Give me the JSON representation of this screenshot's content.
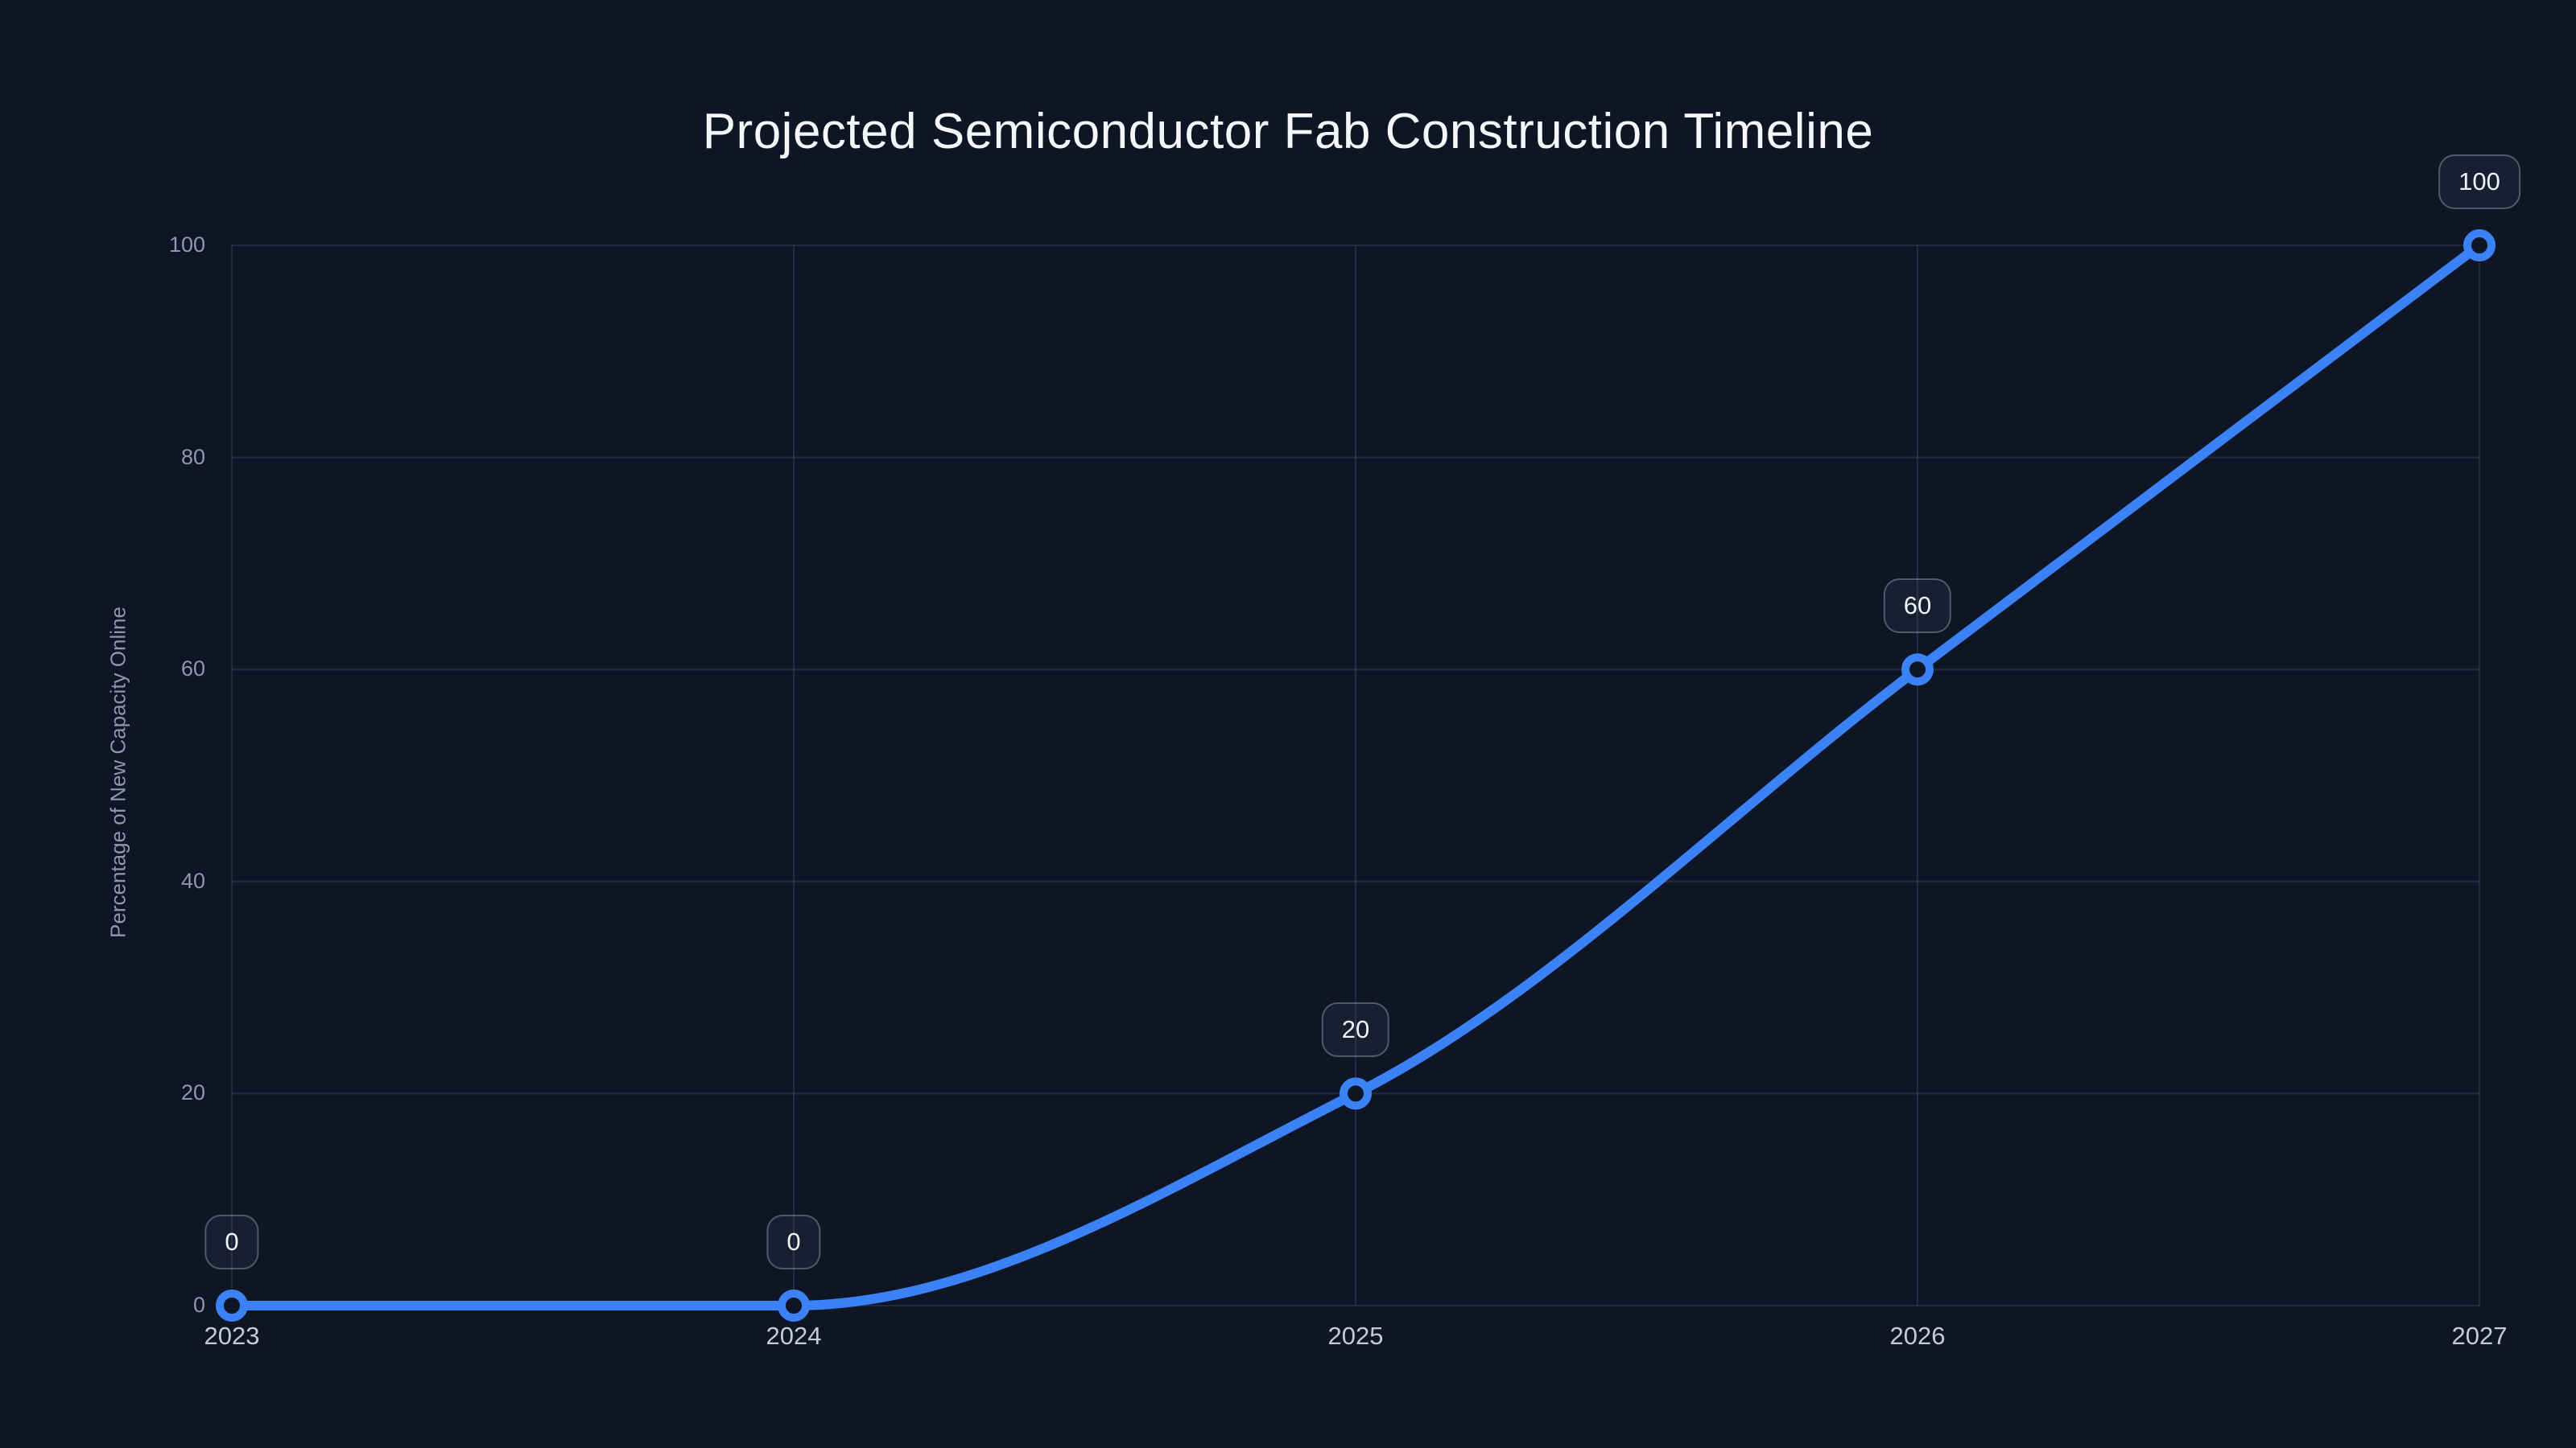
{
  "page": {
    "background_color": "#0e1626"
  },
  "chart_data": {
    "type": "line",
    "title": "Projected Semiconductor Fab Construction Timeline",
    "categories": [
      "2023",
      "2024",
      "2025",
      "2026",
      "2027"
    ],
    "series": [
      {
        "name": "Percentage of New Capacity Online",
        "values": [
          0,
          0,
          20,
          60,
          100
        ]
      }
    ],
    "data_labels": [
      "0",
      "0",
      "20",
      "60",
      "100"
    ],
    "xlabel": "",
    "ylabel": "Percentage of New Capacity Online",
    "ylim": [
      0,
      100
    ],
    "yticks": [
      0,
      20,
      40,
      60,
      80,
      100
    ],
    "grid": true,
    "legend": false,
    "curve": "monotone",
    "colors": {
      "line": "#3b82f6",
      "marker_fill": "#0e1626",
      "grid": "rgba(148,163,184,0.16)",
      "title_text": "#f5f7fa",
      "x_tick_text": "#c3cbd8",
      "y_tick_text": "#8d98aa",
      "data_label_text": "#f0f3f7",
      "data_label_border": "rgba(203,213,225,0.32)"
    }
  }
}
